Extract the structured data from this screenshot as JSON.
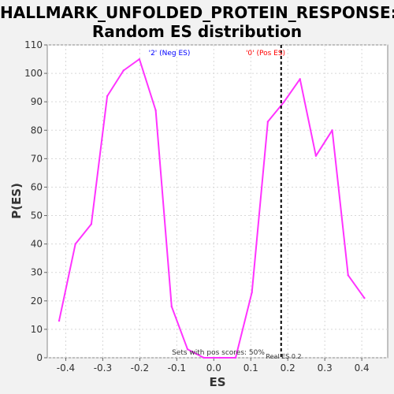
{
  "chart_data": {
    "type": "line",
    "title": "HALLMARK_UNFOLDED_PROTEIN_RESPONSE:",
    "subtitle": "Random ES distribution",
    "xlabel": "ES",
    "ylabel": "P(ES)",
    "xlim": [
      -0.45,
      0.47
    ],
    "ylim": [
      0,
      110
    ],
    "xticks": [
      -0.4,
      -0.3,
      -0.2,
      -0.1,
      0.0,
      0.1,
      0.2,
      0.3,
      0.4
    ],
    "xtick_labels": [
      "-0.4",
      "-0.3",
      "-0.2",
      "-0.1",
      "0.0",
      "0.1",
      "0.2",
      "0.3",
      "0.4"
    ],
    "yticks": [
      0,
      10,
      20,
      30,
      40,
      50,
      60,
      70,
      80,
      90,
      100,
      110
    ],
    "ytick_labels": [
      "0",
      "10",
      "20",
      "30",
      "40",
      "50",
      "60",
      "70",
      "80",
      "90",
      "100",
      "110"
    ],
    "grid": true,
    "series": [
      {
        "color": "#ff33ff",
        "x": [
          -0.418,
          -0.374,
          -0.331,
          -0.288,
          -0.244,
          -0.201,
          -0.157,
          -0.114,
          -0.071,
          -0.027,
          0.016,
          0.059,
          0.103,
          0.146,
          0.19,
          0.233,
          0.276,
          0.32,
          0.363,
          0.407
        ],
        "y": [
          13,
          40,
          47,
          92,
          101,
          105,
          87,
          18,
          3,
          0,
          0,
          0,
          23,
          83,
          90,
          98,
          71,
          80,
          29,
          21
        ]
      }
    ],
    "annotations": {
      "neg_label": "'2' (Neg ES)",
      "pos_label": "'0' (Pos ES)",
      "pos_scores": "Sets with pos scores: 50%",
      "real_es": "Real ES 0.2",
      "real_es_value": 0.182
    },
    "colors": {
      "line": "#ff33ff",
      "neg_label": "#0000ff",
      "pos_label": "#ff0000",
      "real_es_line": "#000000",
      "grid": "#d8d8d8"
    }
  }
}
